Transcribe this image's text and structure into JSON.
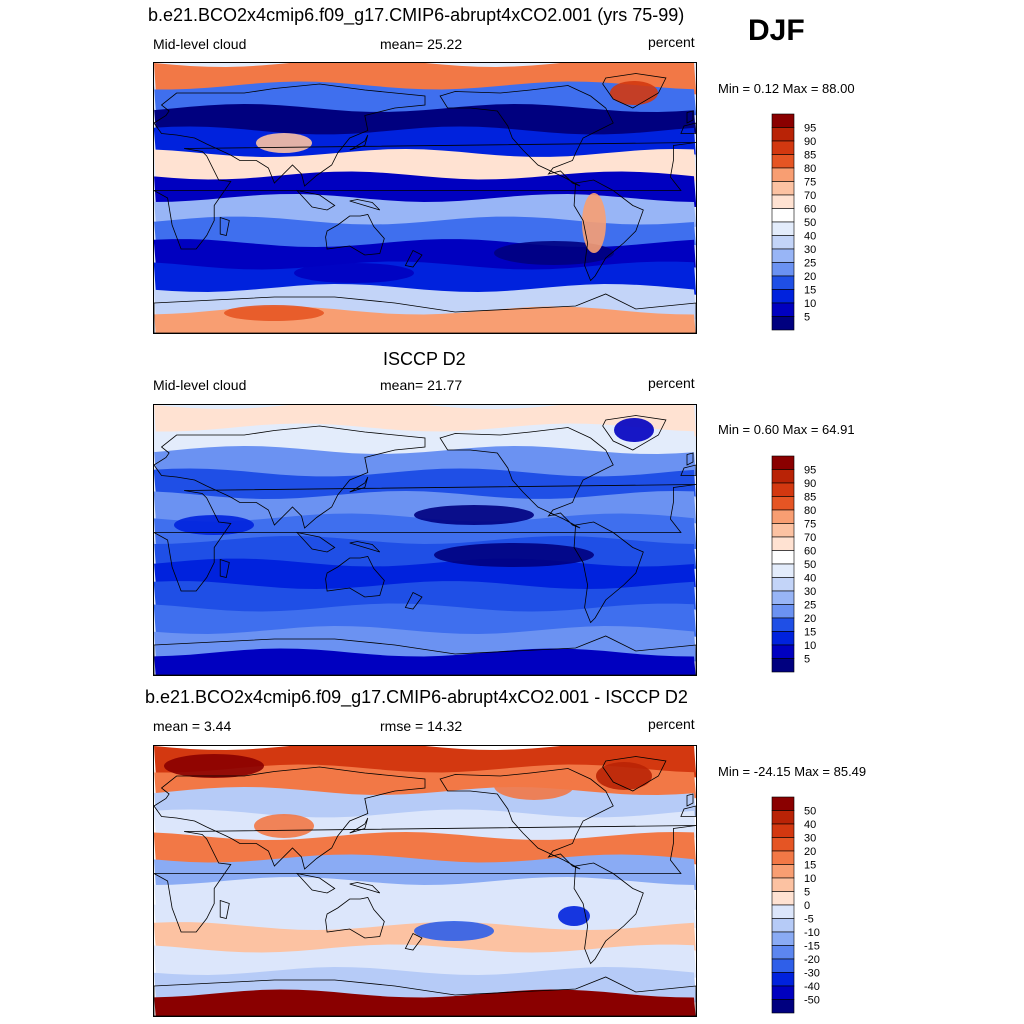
{
  "season": "DJF",
  "colors": {
    "sequential": [
      "#00007f",
      "#0000c0",
      "#0022dd",
      "#1f4fe6",
      "#3f6fee",
      "#6b92f2",
      "#98b5f6",
      "#c3d4f8",
      "#e3ecfb",
      "#ffffff",
      "#ffe2d2",
      "#fcc2a2",
      "#f89e72",
      "#f27846",
      "#e55524",
      "#d33810",
      "#b92306",
      "#8a0000"
    ],
    "diverging": [
      "#00007f",
      "#0000c0",
      "#0022dd",
      "#2f5fe9",
      "#5c86f0",
      "#8aabf4",
      "#b6cbf7",
      "#dce6fb",
      "#ffffff",
      "#ffe2d2",
      "#fcc2a2",
      "#f89e72",
      "#f27846",
      "#e55524",
      "#d33810",
      "#b92306",
      "#8a0000"
    ]
  },
  "panels": [
    {
      "title": "b.e21.BCO2x4cmip6.f09_g17.CMIP6-abrupt4xCO2.001 (yrs 75-99)",
      "left_label": "Mid-level cloud",
      "mid_label": "mean=  25.22",
      "right_label": "percent",
      "minmax": "Min =   0.12 Max =  88.00",
      "levels": [
        "95",
        "90",
        "85",
        "80",
        "75",
        "70",
        "60",
        "50",
        "40",
        "30",
        "25",
        "20",
        "15",
        "10",
        "5"
      ],
      "field": {
        "kind": "model",
        "band_levels": [
          13,
          4,
          0,
          2,
          10,
          1,
          6,
          4,
          1,
          2,
          7,
          12
        ]
      }
    },
    {
      "title": "ISCCP D2",
      "left_label": "Mid-level cloud",
      "mid_label": "mean=  21.77",
      "right_label": "percent",
      "minmax": "Min =   0.60 Max =  64.91",
      "levels": [
        "95",
        "90",
        "85",
        "80",
        "75",
        "70",
        "60",
        "50",
        "40",
        "30",
        "25",
        "20",
        "15",
        "10",
        "5"
      ],
      "field": {
        "kind": "obs",
        "band_levels": [
          10,
          8,
          5,
          3,
          5,
          4,
          3,
          2,
          3,
          4,
          5,
          1
        ]
      }
    },
    {
      "title": "b.e21.BCO2x4cmip6.f09_g17.CMIP6-abrupt4xCO2.001 - ISCCP D2",
      "left_label": "mean =   3.44",
      "mid_label": "rmse =  14.32",
      "right_label": "percent",
      "minmax": "Min = -24.15 Max =  85.49",
      "levels": [
        "50",
        "40",
        "30",
        "20",
        "15",
        "10",
        "5",
        "0",
        "-5",
        "-10",
        "-15",
        "-20",
        "-30",
        "-40",
        "-50"
      ],
      "field": {
        "kind": "diff",
        "band_levels": [
          14,
          12,
          6,
          7,
          12,
          5,
          7,
          7,
          10,
          7,
          6,
          16
        ]
      }
    }
  ]
}
